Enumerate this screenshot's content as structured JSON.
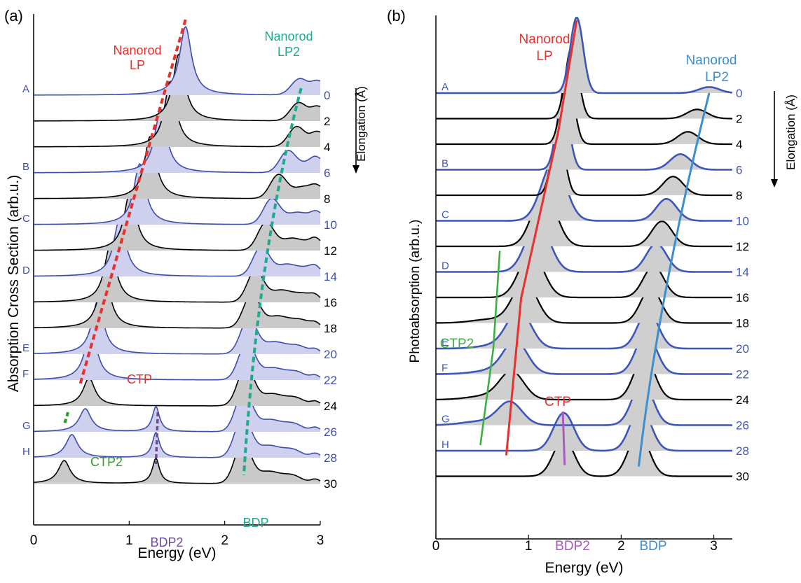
{
  "chart_data": [
    {
      "panel_label": "(a)",
      "type": "line",
      "xlabel": "Energy (eV)",
      "ylabel": "Absorption Cross Section (arb.u.)",
      "xlim": [
        0,
        3
      ],
      "xticks": [
        "0",
        "1",
        "2",
        "3"
      ],
      "elongation_label": "Elongation (Å)",
      "elongations": [
        0,
        2,
        4,
        6,
        8,
        10,
        12,
        14,
        16,
        18,
        20,
        22,
        24,
        26,
        28,
        30
      ],
      "highlighted": {
        "0": "A",
        "6": "B",
        "10": "C",
        "14": "D",
        "20": "E",
        "22": "F",
        "26": "G",
        "28": "H"
      },
      "fill_color": "#c9c9c9",
      "highlight_fill_color": "#cfcfee",
      "line_color": "#000000",
      "highlight_line_color": "#3d4ea8",
      "peaks": {
        "lp_energy": [
          1.59,
          1.52,
          1.43,
          1.33,
          1.22,
          1.11,
          1.01,
          0.9,
          0.8,
          0.74,
          0.67,
          0.6,
          0.58,
          0.54,
          0.4,
          0.32
        ],
        "lp2_energy": [
          2.78,
          2.77,
          2.75,
          2.66,
          2.56,
          2.49,
          2.43,
          2.38,
          2.32,
          2.28,
          2.25,
          2.23,
          2.22,
          2.2,
          2.19,
          2.19
        ],
        "bdp2_energy": 1.28
      },
      "annotations": [
        {
          "text": "Nanorod",
          "color": "#e8302c"
        },
        {
          "text": "LP",
          "color": "#e8302c"
        },
        {
          "text": "Nanorod",
          "color": "#1faa8c"
        },
        {
          "text": "LP2",
          "color": "#1faa8c"
        },
        {
          "text": "CTP",
          "color": "#e8302c"
        },
        {
          "text": "CTP2",
          "color": "#2ca02c"
        },
        {
          "text": "BDP2",
          "color": "#6a4c9c"
        },
        {
          "text": "BDP",
          "color": "#1faa8c"
        }
      ]
    },
    {
      "panel_label": "(b)",
      "type": "line",
      "xlabel": "Energy (eV)",
      "ylabel": "Photoabsorption (arb.u.)",
      "xlim": [
        0,
        3.2
      ],
      "xticks": [
        "0",
        "1",
        "2",
        "3"
      ],
      "elongation_label": "Elongation (Å)",
      "elongations": [
        0,
        2,
        4,
        6,
        8,
        10,
        12,
        14,
        16,
        18,
        20,
        22,
        24,
        26,
        28,
        30
      ],
      "highlighted": {
        "0": "A",
        "6": "B",
        "10": "C",
        "14": "D",
        "20": "E",
        "22": "F",
        "26": "G",
        "28": "H"
      },
      "fill_color": "#cfcfcf",
      "line_color": "#000000",
      "highlight_line_color": "#3d56b8",
      "peaks": {
        "lp_energy": [
          1.52,
          1.47,
          1.42,
          1.37,
          1.32,
          1.27,
          1.17,
          1.1,
          1.03,
          0.96,
          0.9,
          0.86,
          0.82,
          0.8,
          0.78,
          0.76
        ],
        "lp2_energy": [
          2.95,
          2.82,
          2.72,
          2.64,
          2.56,
          2.49,
          2.44,
          2.38,
          2.35,
          2.32,
          2.29,
          2.27,
          2.25,
          2.23,
          2.21,
          2.19
        ],
        "ctp2_energy": [
          0.69,
          0.62,
          0.55,
          0.48
        ],
        "bdp2_energy": 1.38
      },
      "annotations": [
        {
          "text": "Nanorod",
          "color": "#e8302c"
        },
        {
          "text": "LP",
          "color": "#e8302c"
        },
        {
          "text": "Nanorod",
          "color": "#3b8fcf"
        },
        {
          "text": "LP2",
          "color": "#3b8fcf"
        },
        {
          "text": "CTP",
          "color": "#e8302c"
        },
        {
          "text": "CTP2",
          "color": "#3cb043"
        },
        {
          "text": "BDP2",
          "color": "#a75bbf"
        },
        {
          "text": "BDP",
          "color": "#3b8fcf"
        }
      ]
    }
  ]
}
